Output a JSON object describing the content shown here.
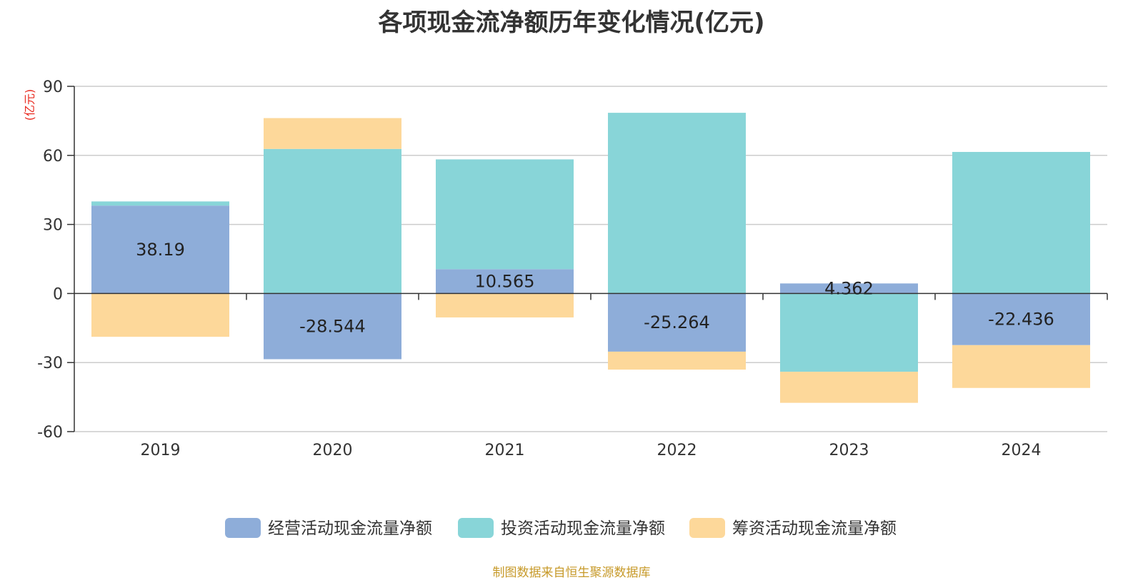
{
  "chart_data": {
    "type": "bar",
    "stacked": true,
    "title": "各项现金流净额历年变化情况(亿元)",
    "ylabel": "(亿元)",
    "categories": [
      "2019",
      "2020",
      "2021",
      "2022",
      "2023",
      "2024"
    ],
    "ylim": [
      -60,
      90
    ],
    "yticks": [
      90,
      60,
      30,
      0,
      -30,
      -60
    ],
    "grid": true,
    "legend_position": "bottom-center",
    "series": [
      {
        "name": "经营活动现金流量净额",
        "color": "#8eadd9",
        "values": [
          38.19,
          -28.544,
          10.565,
          -25.264,
          4.362,
          -22.436
        ]
      },
      {
        "name": "投资活动现金流量净额",
        "color": "#88d5d8",
        "values": [
          1.8,
          62.8,
          47.7,
          78.5,
          -34.0,
          61.5
        ]
      },
      {
        "name": "筹资活动现金流量净额",
        "color": "#fdd89a",
        "values": [
          -18.8,
          13.4,
          -10.4,
          -7.8,
          -13.5,
          -18.6
        ]
      }
    ],
    "data_labels": [
      "38.19",
      "-28.544",
      "10.565",
      "-25.264",
      "4.362",
      "-22.436"
    ]
  },
  "source_note": "制图数据来自恒生聚源数据库"
}
